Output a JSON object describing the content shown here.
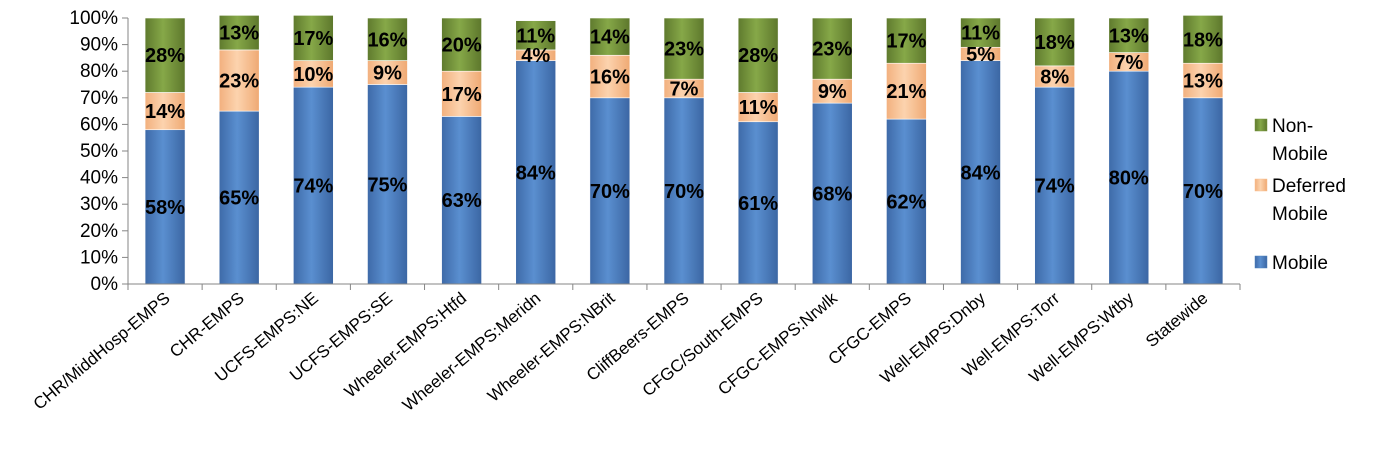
{
  "chart_data": {
    "type": "bar",
    "stacked": true,
    "orientation": "vertical",
    "title": "",
    "xlabel": "",
    "ylabel": "",
    "ylim": [
      0,
      100
    ],
    "y_ticks": [
      "0%",
      "10%",
      "20%",
      "30%",
      "40%",
      "50%",
      "60%",
      "70%",
      "80%",
      "90%",
      "100%"
    ],
    "grid": false,
    "legend_position": "right",
    "categories": [
      "CHR/MiddHosp-EMPS",
      "CHR-EMPS",
      "UCFS-EMPS:NE",
      "UCFS-EMPS:SE",
      "Wheeler-EMPS:Htfd",
      "Wheeler-EMPS:Meridn",
      "Wheeler-EMPS:NBrit",
      "CliffBeers-EMPS",
      "CFGC/South-EMPS",
      "CFGC-EMPS:Nrwlk",
      "CFGC-EMPS",
      "Well-EMPS:Dnby",
      "Well-EMPS:Torr",
      "Well-EMPS:Wtby",
      "Statewide"
    ],
    "series": [
      {
        "name": "Mobile",
        "color": "#4F81BD",
        "values": [
          58,
          65,
          74,
          75,
          63,
          84,
          70,
          70,
          61,
          68,
          62,
          84,
          74,
          80,
          70
        ],
        "labels": [
          "58%",
          "65%",
          "74%",
          "75%",
          "63%",
          "84%",
          "70%",
          "70%",
          "61%",
          "68%",
          "62%",
          "84%",
          "74%",
          "80%",
          "70%"
        ]
      },
      {
        "name": "Deferred Mobile",
        "color": "#FAC090",
        "values": [
          14,
          23,
          10,
          9,
          17,
          4,
          16,
          7,
          11,
          9,
          21,
          5,
          8,
          7,
          13
        ],
        "labels": [
          "14%",
          "23%",
          "10%",
          "9%",
          "17%",
          "4%",
          "16%",
          "7%",
          "11%",
          "9%",
          "21%",
          "5%",
          "8%",
          "7%",
          "13%"
        ]
      },
      {
        "name": "Non-Mobile",
        "color": "#77933C",
        "values": [
          28,
          13,
          17,
          16,
          20,
          11,
          14,
          23,
          28,
          23,
          17,
          11,
          18,
          13,
          18
        ],
        "labels": [
          "28%",
          "13%",
          "17%",
          "16%",
          "20%",
          "11%",
          "14%",
          "23%",
          "28%",
          "23%",
          "17%",
          "11%",
          "18%",
          "13%",
          "18%"
        ]
      }
    ],
    "legend": {
      "order": [
        "Non-Mobile",
        "Deferred Mobile",
        "Mobile"
      ],
      "entries": [
        {
          "lines": [
            "Non-",
            "Mobile"
          ],
          "series": "Non-Mobile"
        },
        {
          "lines": [
            "Deferred",
            "Mobile"
          ],
          "series": "Deferred Mobile"
        },
        {
          "lines": [
            "Mobile"
          ],
          "series": "Mobile"
        }
      ]
    }
  }
}
